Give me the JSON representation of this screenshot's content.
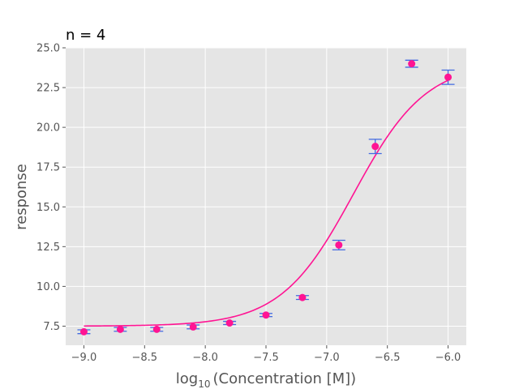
{
  "chart_data": {
    "type": "scatter",
    "title": "n = 4",
    "xlabel_base": "log",
    "xlabel_sub": "10",
    "xlabel_rest": "(Concentration [M])",
    "ylabel": "response",
    "xlim": [
      -9.15,
      -5.85
    ],
    "ylim": [
      6.3,
      25.0
    ],
    "x_ticks": [
      -9.0,
      -8.5,
      -8.0,
      -7.5,
      -7.0,
      -6.5,
      -6.0
    ],
    "x_tick_labels": [
      "−9.0",
      "−8.5",
      "−8.0",
      "−7.5",
      "−7.0",
      "−6.5",
      "−6.0"
    ],
    "y_ticks": [
      7.5,
      10.0,
      12.5,
      15.0,
      17.5,
      20.0,
      22.5,
      25.0
    ],
    "y_tick_labels": [
      "7.5",
      "10.0",
      "12.5",
      "15.0",
      "17.5",
      "20.0",
      "22.5",
      "25.0"
    ],
    "grid": true,
    "series": [
      {
        "x": [
          -9.0,
          -8.7,
          -8.4,
          -8.1,
          -7.8,
          -7.5,
          -7.2,
          -6.9,
          -6.6,
          -6.3,
          -6.0
        ],
        "y": [
          7.15,
          7.3,
          7.3,
          7.45,
          7.7,
          8.2,
          9.3,
          12.6,
          18.8,
          24.0,
          23.15
        ],
        "yerr": [
          0.12,
          0.12,
          0.12,
          0.12,
          0.1,
          0.1,
          0.12,
          0.3,
          0.45,
          0.22,
          0.45
        ],
        "marker_color": "#ff1493",
        "errorbar_color": "#4169e1"
      }
    ],
    "fit": {
      "model": "4PL",
      "bottom": 7.5,
      "top": 24.1,
      "logEC50": -6.78,
      "hill": 1.45,
      "color": "#ff1493"
    },
    "colors": {
      "plot_background": "#e5e5e5",
      "grid": "#ffffff",
      "text": "#555555"
    }
  }
}
